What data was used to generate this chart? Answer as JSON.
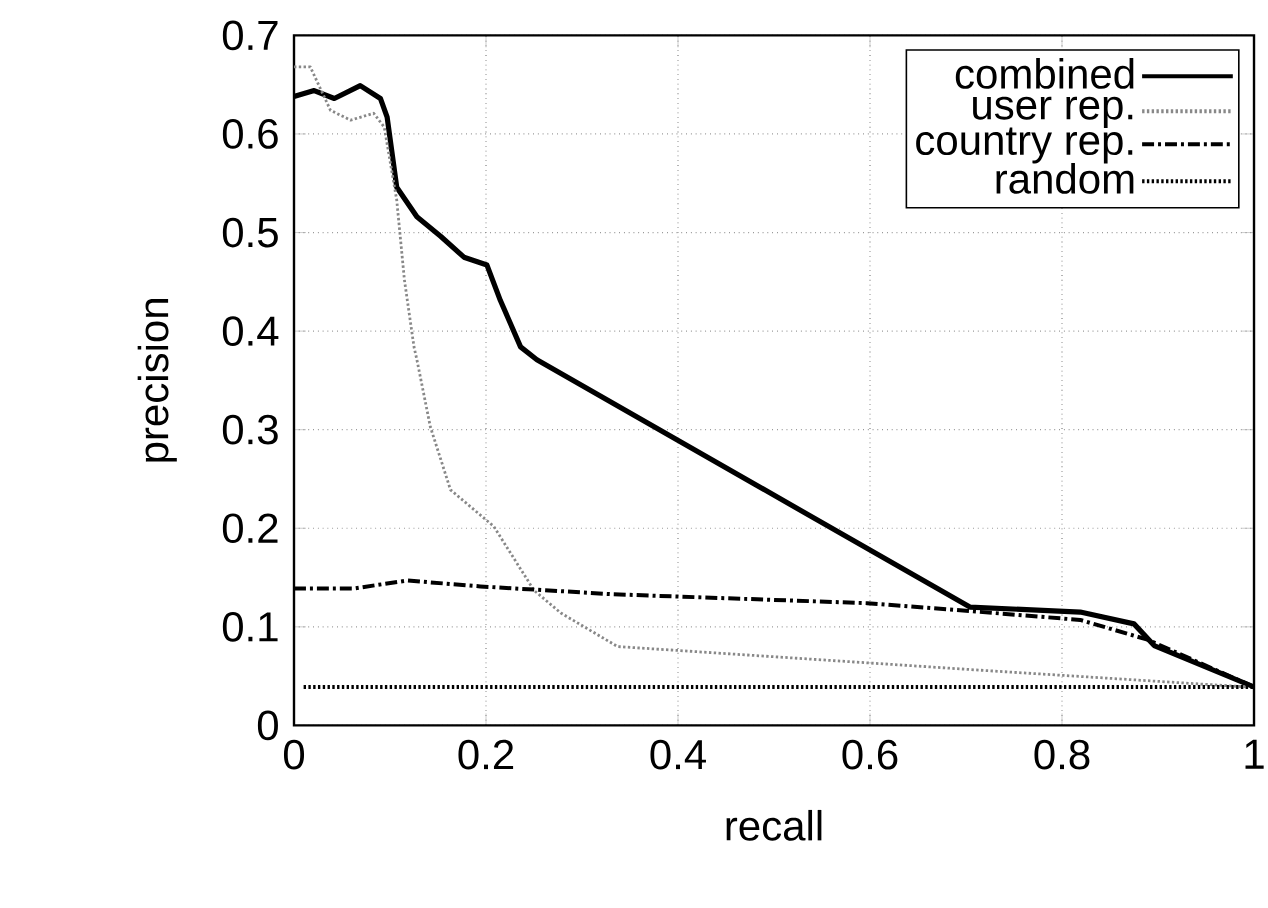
{
  "chart_data": {
    "type": "line",
    "xlabel": "recall",
    "ylabel": "precision",
    "xlim": [
      0,
      1
    ],
    "ylim": [
      0,
      0.7
    ],
    "xticks": [
      0,
      0.2,
      0.4,
      0.6,
      0.8,
      1
    ],
    "yticks": [
      0,
      0.1,
      0.2,
      0.3,
      0.4,
      0.5,
      0.6,
      0.7
    ],
    "grid": true,
    "legend": "top right",
    "marker": "none",
    "series": [
      {
        "name": "combined",
        "color": "#000000",
        "line_style": "solid",
        "x": [
          0,
          0.021,
          0.042,
          0.069,
          0.09,
          0.097,
          0.107,
          0.128,
          0.153,
          0.177,
          0.201,
          0.215,
          0.236,
          0.253,
          0.704,
          0.819,
          0.875,
          0.896,
          1.0
        ],
        "values": [
          0.638,
          0.644,
          0.636,
          0.649,
          0.636,
          0.617,
          0.546,
          0.516,
          0.496,
          0.475,
          0.467,
          0.431,
          0.384,
          0.371,
          0.12,
          0.115,
          0.103,
          0.081,
          0.039
        ]
      },
      {
        "name": "user rep.",
        "color": "#888888",
        "line_style": "dotted",
        "x": [
          0,
          0.017,
          0.038,
          0.059,
          0.083,
          0.094,
          0.107,
          0.115,
          0.125,
          0.128,
          0.142,
          0.163,
          0.208,
          0.25,
          0.278,
          0.337,
          0.715,
          0.993
        ],
        "values": [
          0.668,
          0.668,
          0.624,
          0.614,
          0.621,
          0.607,
          0.533,
          0.452,
          0.384,
          0.371,
          0.303,
          0.239,
          0.202,
          0.137,
          0.114,
          0.08,
          0.056,
          0.039
        ]
      },
      {
        "name": "country rep.",
        "color": "#000000",
        "line_style": "dashdot",
        "x": [
          0,
          0.063,
          0.118,
          0.194,
          0.333,
          0.597,
          0.704,
          0.819,
          0.889,
          1.0
        ],
        "values": [
          0.139,
          0.139,
          0.147,
          0.141,
          0.133,
          0.124,
          0.116,
          0.107,
          0.087,
          0.039
        ]
      },
      {
        "name": "random",
        "color": "#000000",
        "line_style": "dotted",
        "x": [
          0.01,
          1.0
        ],
        "values": [
          0.039,
          0.039
        ]
      }
    ]
  }
}
